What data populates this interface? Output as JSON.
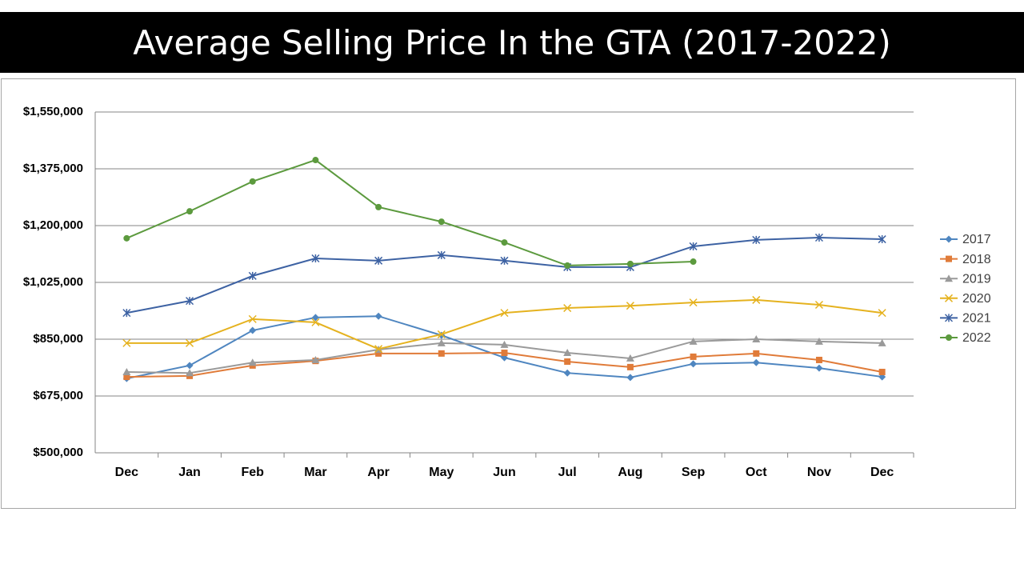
{
  "chart_data": {
    "type": "line",
    "title": "Average Selling Price In the GTA (2017-2022)",
    "categories": [
      "Dec",
      "Jan",
      "Feb",
      "Mar",
      "Apr",
      "May",
      "Jun",
      "Jul",
      "Aug",
      "Sep",
      "Oct",
      "Nov",
      "Dec"
    ],
    "ylim": [
      500000,
      1550000
    ],
    "yticks": [
      {
        "value": 500000,
        "label": "$500,000"
      },
      {
        "value": 675000,
        "label": "$675,000"
      },
      {
        "value": 850000,
        "label": "$850,000"
      },
      {
        "value": 1025000,
        "label": "$1,025,000"
      },
      {
        "value": 1200000,
        "label": "$1,200,000"
      },
      {
        "value": 1375000,
        "label": "$1,375,000"
      },
      {
        "value": 1550000,
        "label": "$1,550,000"
      }
    ],
    "grid": true,
    "legend": "right",
    "series": [
      {
        "name": "2017",
        "color": "#4f86c0",
        "marker": "diamond",
        "values": [
          729000,
          769000,
          877000,
          917000,
          921000,
          862000,
          793000,
          746000,
          732000,
          774000,
          778000,
          761000,
          734000
        ]
      },
      {
        "name": "2018",
        "color": "#e07b39",
        "marker": "square",
        "values": [
          734000,
          737000,
          769000,
          783000,
          806000,
          806000,
          808000,
          781000,
          764000,
          796000,
          806000,
          786000,
          749000
        ]
      },
      {
        "name": "2019",
        "color": "#9a9a9a",
        "marker": "triangle",
        "values": [
          749000,
          746000,
          778000,
          786000,
          818000,
          838000,
          833000,
          808000,
          791000,
          843000,
          850000,
          843000,
          838000
        ]
      },
      {
        "name": "2020",
        "color": "#e5b21f",
        "marker": "x",
        "values": [
          838000,
          838000,
          912000,
          902000,
          820000,
          865000,
          931000,
          946000,
          953000,
          963000,
          971000,
          956000,
          931000
        ]
      },
      {
        "name": "2021",
        "color": "#3d62a3",
        "marker": "asterisk",
        "values": [
          931000,
          968000,
          1045000,
          1099000,
          1092000,
          1109000,
          1092000,
          1072000,
          1072000,
          1136000,
          1156000,
          1163000,
          1158000
        ]
      },
      {
        "name": "2022",
        "color": "#5c9a3e",
        "marker": "circle",
        "values": [
          1161000,
          1244000,
          1336000,
          1402000,
          1257000,
          1212000,
          1148000,
          1077000,
          1082000,
          1089000,
          null,
          null,
          null
        ]
      }
    ]
  }
}
